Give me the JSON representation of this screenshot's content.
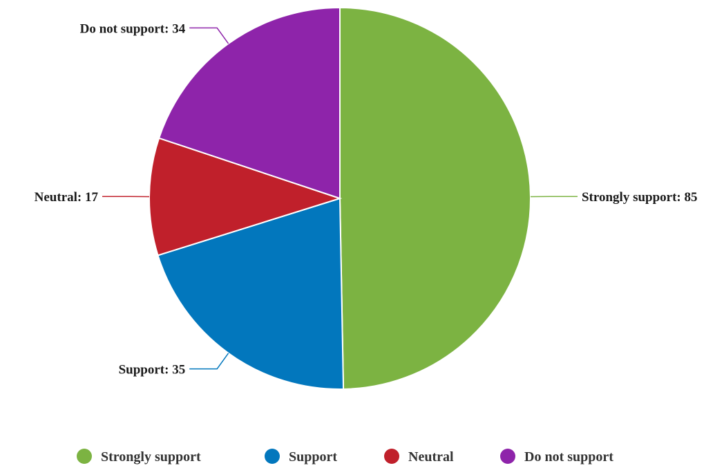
{
  "chart_data": {
    "type": "pie",
    "categories": [
      "Strongly support",
      "Support",
      "Neutral",
      "Do not support"
    ],
    "values": [
      85,
      35,
      17,
      34
    ],
    "colors": [
      "#7cb342",
      "#0277bd",
      "#c0202b",
      "#8e24aa"
    ],
    "data_labels": [
      "Strongly support: 85",
      "Support: 35",
      "Neutral: 17",
      "Do not support: 34"
    ],
    "legend": {
      "placement": "bottom",
      "items": [
        "Strongly support",
        "Support",
        "Neutral",
        "Do not support"
      ]
    },
    "start_angle": "top, clockwise"
  }
}
